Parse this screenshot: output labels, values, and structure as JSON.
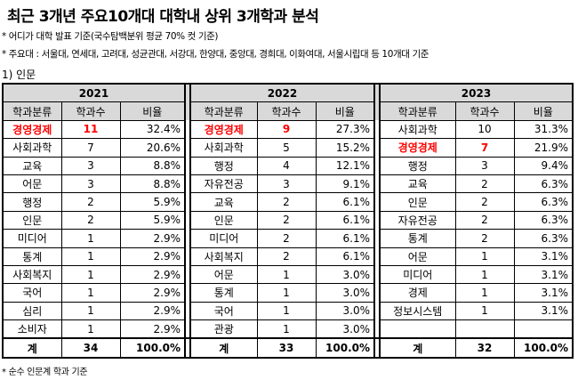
{
  "title": "최근 3개년 주요10개대 대학내 상위 3개학과 분석",
  "notes": [
    "* 어디가 대학 발표 기준(국수탐백분위 평균 70% 컷 기준)",
    "* 주요대 : 서울대, 연세대, 고려대, 성균관대, 서강대, 한양대, 중앙대, 경희대, 이화여대, 서울시립대 등 10개대 기준"
  ],
  "section": "1) 인문",
  "footnote": "* 순수 인문계 학과 기준",
  "headers": [
    "학과분류",
    "학과수",
    "비율"
  ],
  "total_label": "계",
  "years": [
    {
      "year": "2021",
      "rows": [
        {
          "name": "경영경제",
          "count": "11",
          "ratio": "32.4%",
          "highlight": true
        },
        {
          "name": "사회과학",
          "count": "7",
          "ratio": "20.6%"
        },
        {
          "name": "교육",
          "count": "3",
          "ratio": "8.8%"
        },
        {
          "name": "어문",
          "count": "3",
          "ratio": "8.8%"
        },
        {
          "name": "행정",
          "count": "2",
          "ratio": "5.9%"
        },
        {
          "name": "인문",
          "count": "2",
          "ratio": "5.9%"
        },
        {
          "name": "미디어",
          "count": "1",
          "ratio": "2.9%"
        },
        {
          "name": "통계",
          "count": "1",
          "ratio": "2.9%"
        },
        {
          "name": "사회복지",
          "count": "1",
          "ratio": "2.9%"
        },
        {
          "name": "국어",
          "count": "1",
          "ratio": "2.9%"
        },
        {
          "name": "심리",
          "count": "1",
          "ratio": "2.9%"
        },
        {
          "name": "소비자",
          "count": "1",
          "ratio": "2.9%"
        }
      ],
      "total_count": "34",
      "total_ratio": "100.0%"
    },
    {
      "year": "2022",
      "rows": [
        {
          "name": "경영경제",
          "count": "9",
          "ratio": "27.3%",
          "highlight": true
        },
        {
          "name": "사회과학",
          "count": "5",
          "ratio": "15.2%"
        },
        {
          "name": "행정",
          "count": "4",
          "ratio": "12.1%"
        },
        {
          "name": "자유전공",
          "count": "3",
          "ratio": "9.1%"
        },
        {
          "name": "교육",
          "count": "2",
          "ratio": "6.1%"
        },
        {
          "name": "인문",
          "count": "2",
          "ratio": "6.1%"
        },
        {
          "name": "미디어",
          "count": "2",
          "ratio": "6.1%"
        },
        {
          "name": "사회복지",
          "count": "2",
          "ratio": "6.1%"
        },
        {
          "name": "어문",
          "count": "1",
          "ratio": "3.0%"
        },
        {
          "name": "통계",
          "count": "1",
          "ratio": "3.0%"
        },
        {
          "name": "국어",
          "count": "1",
          "ratio": "3.0%"
        },
        {
          "name": "관광",
          "count": "1",
          "ratio": "3.0%"
        }
      ],
      "total_count": "33",
      "total_ratio": "100.0%"
    },
    {
      "year": "2023",
      "rows": [
        {
          "name": "사회과학",
          "count": "10",
          "ratio": "31.3%"
        },
        {
          "name": "경영경제",
          "count": "7",
          "ratio": "21.9%",
          "highlight": true
        },
        {
          "name": "행정",
          "count": "3",
          "ratio": "9.4%"
        },
        {
          "name": "교육",
          "count": "2",
          "ratio": "6.3%"
        },
        {
          "name": "인문",
          "count": "2",
          "ratio": "6.3%"
        },
        {
          "name": "자유전공",
          "count": "2",
          "ratio": "6.3%"
        },
        {
          "name": "통계",
          "count": "2",
          "ratio": "6.3%"
        },
        {
          "name": "어문",
          "count": "1",
          "ratio": "3.1%"
        },
        {
          "name": "미디어",
          "count": "1",
          "ratio": "3.1%"
        },
        {
          "name": "경제",
          "count": "1",
          "ratio": "3.1%"
        },
        {
          "name": "정보시스템",
          "count": "1",
          "ratio": "3.1%"
        },
        {
          "name": "",
          "count": "",
          "ratio": ""
        }
      ],
      "total_count": "32",
      "total_ratio": "100.0%"
    }
  ]
}
